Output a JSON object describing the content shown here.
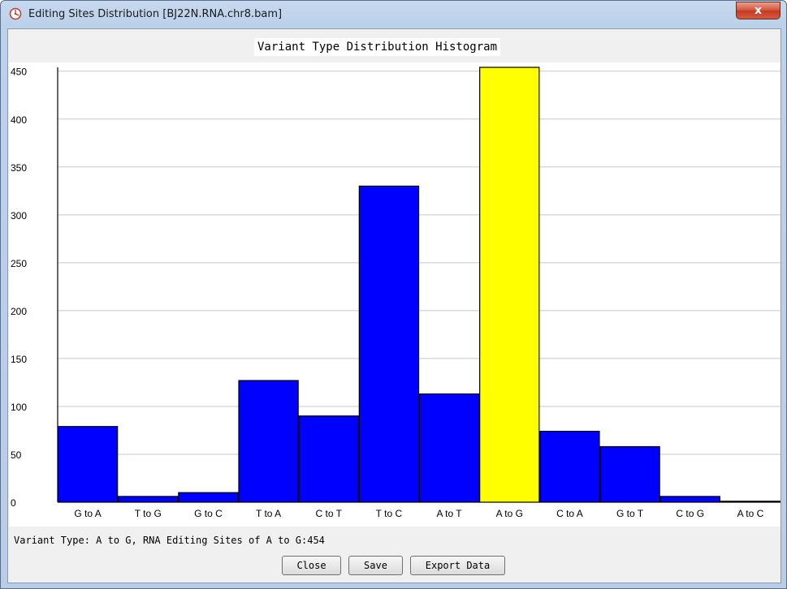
{
  "window": {
    "title": "Editing Sites Distribution [BJ22N.RNA.chr8.bam]",
    "close_glyph": "x"
  },
  "status": "Variant Type: A to G, RNA Editing Sites of A to G:454",
  "buttons": {
    "close": "Close",
    "save": "Save",
    "export": "Export Data"
  },
  "colors": {
    "bar": "#0000ff",
    "highlight": "#ffff00"
  },
  "chart_data": {
    "type": "bar",
    "title": "Variant Type Distribution Histogram",
    "categories": [
      "G to A",
      "T to G",
      "G to C",
      "T to A",
      "C to T",
      "T to C",
      "A to T",
      "A to G",
      "C to A",
      "G to T",
      "C to G",
      "A to C"
    ],
    "values": [
      79,
      6,
      10,
      127,
      90,
      330,
      113,
      454,
      74,
      58,
      6,
      1
    ],
    "highlighted": "A to G",
    "ylim": [
      0,
      454
    ],
    "yticks": [
      0,
      50,
      100,
      150,
      200,
      250,
      300,
      350,
      400,
      450
    ],
    "grid": true,
    "xlabel": "",
    "ylabel": ""
  }
}
